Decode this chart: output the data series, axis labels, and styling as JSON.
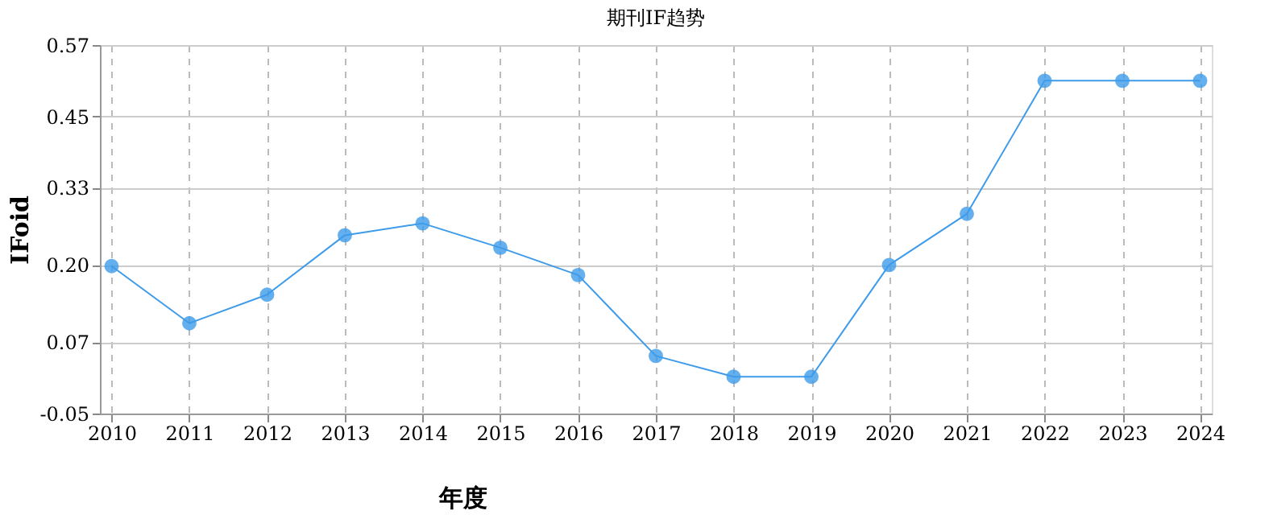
{
  "chart_data": {
    "type": "line",
    "title": "期刊IF趋势",
    "xlabel": "年度",
    "ylabel": "IFoid",
    "categories": [
      "2010",
      "2011",
      "2012",
      "2013",
      "2014",
      "2015",
      "2016",
      "2017",
      "2018",
      "2019",
      "2020",
      "2021",
      "2022",
      "2023",
      "2024"
    ],
    "series": [
      {
        "color": "#3d9be9",
        "values": [
          0.198,
          0.102,
          0.15,
          0.25,
          0.27,
          0.229,
          0.183,
          0.047,
          0.012,
          0.012,
          0.2,
          0.286,
          0.51,
          0.51,
          0.51
        ]
      }
    ],
    "ylim": [
      -0.05,
      0.57
    ],
    "yticks": [
      {
        "value": -0.05,
        "label": "-0.05"
      },
      {
        "value": 0.07,
        "label": "0.07"
      },
      {
        "value": 0.2,
        "label": "0.20"
      },
      {
        "value": 0.33,
        "label": "0.33"
      },
      {
        "value": 0.45,
        "label": "0.45"
      },
      {
        "value": 0.57,
        "label": "0.57"
      }
    ],
    "grid": true,
    "marker": "circle",
    "line_style": "solid"
  }
}
